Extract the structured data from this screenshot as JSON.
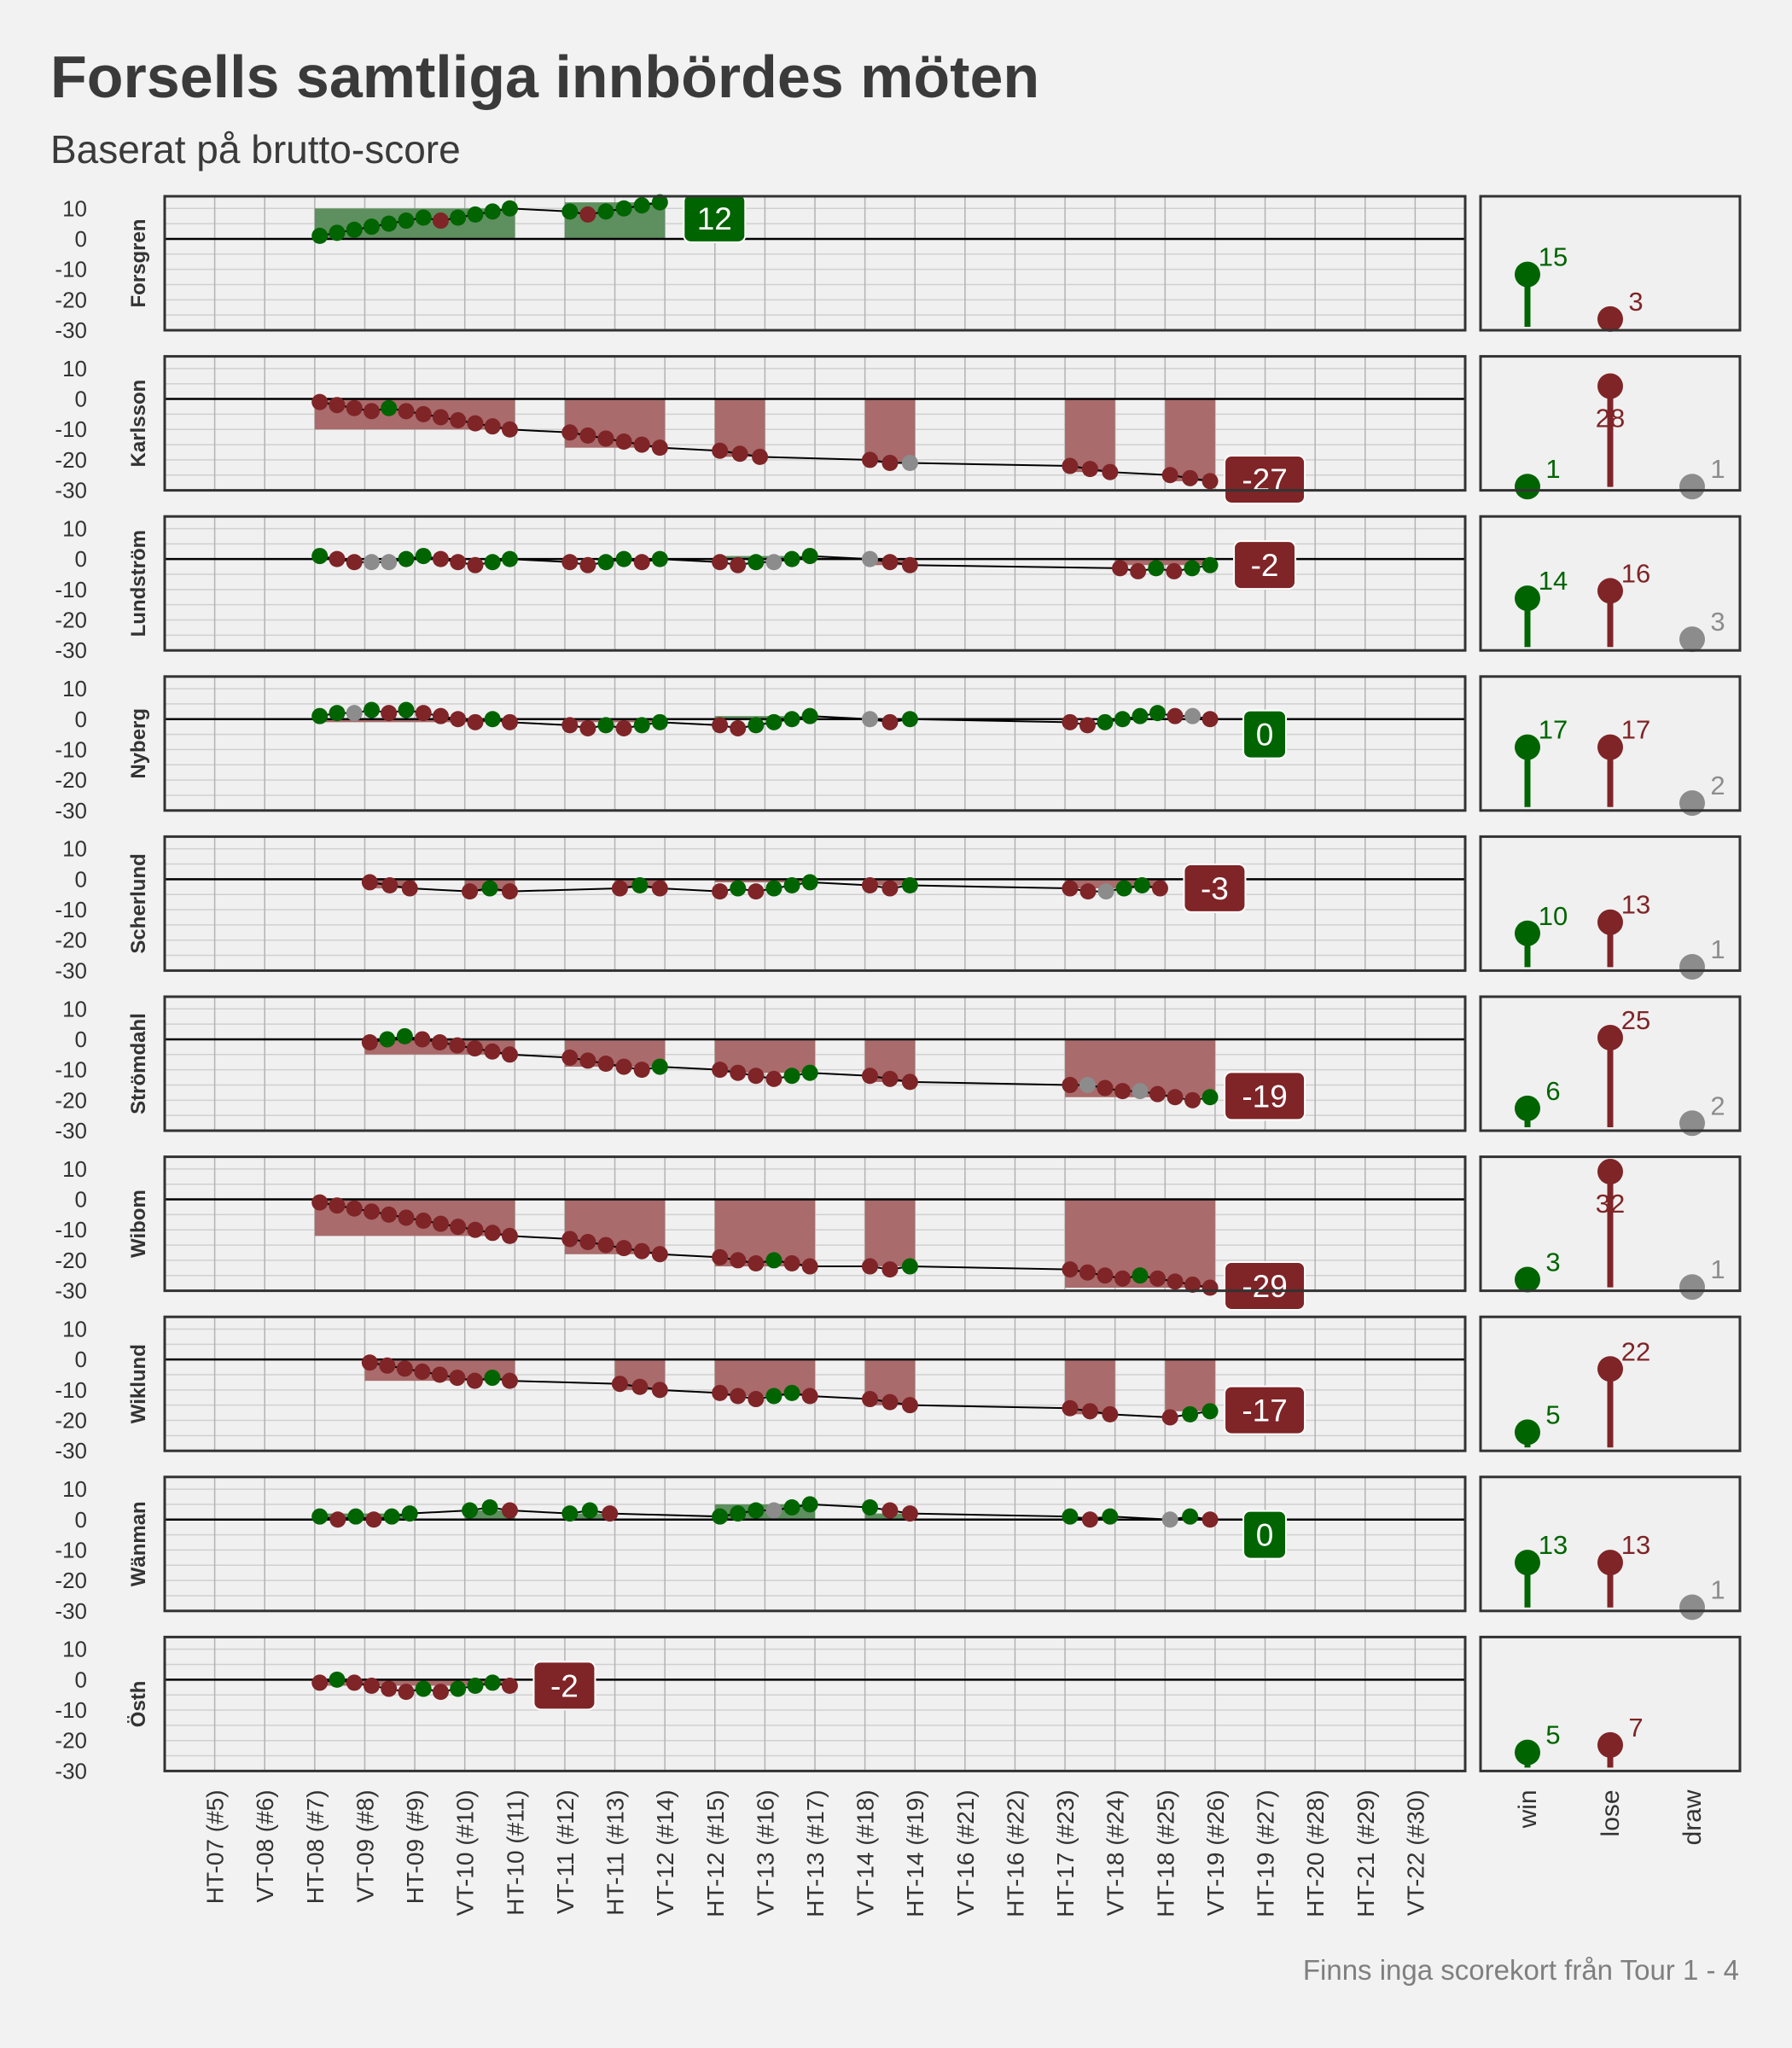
{
  "title": "Forsells samtliga innbördes möten",
  "subtitle": "Baserat på brutto-score",
  "caption": "Finns inga scorekort från Tour 1 - 4",
  "colors": {
    "win": "#006400",
    "lose": "#7f2427",
    "draw": "#8c8c8c",
    "background": "#f2f2f2",
    "panel": "#f0f0f0"
  },
  "chart_data": {
    "type": "line",
    "x_categories": [
      "HT-07 (#5)",
      "VT-08 (#6)",
      "HT-08 (#7)",
      "VT-09 (#8)",
      "HT-09 (#9)",
      "VT-10 (#10)",
      "HT-10 (#11)",
      "VT-11 (#12)",
      "HT-11 (#13)",
      "VT-12 (#14)",
      "HT-12 (#15)",
      "VT-13 (#16)",
      "HT-13 (#17)",
      "VT-14 (#18)",
      "HT-14 (#19)",
      "VT-16 (#21)",
      "HT-16 (#22)",
      "HT-17 (#23)",
      "VT-18 (#24)",
      "HT-18 (#25)",
      "VT-19 (#26)",
      "HT-19 (#27)",
      "HT-20 (#28)",
      "HT-21 (#29)",
      "VT-22 (#30)"
    ],
    "ylim": [
      -30,
      14
    ],
    "y_ticks": [
      10,
      0,
      -10,
      -20,
      -30
    ],
    "result_ticks": [
      "win",
      "lose",
      "draw"
    ],
    "result_ylim": [
      0,
      36
    ],
    "grid": true,
    "panels": [
      {
        "name": "Forsgren",
        "final": "12",
        "counts": {
          "win": 15,
          "lose": 3,
          "draw": 0
        },
        "segments": [
          {
            "start": 2.1,
            "end": 5.9,
            "values": [
              1,
              2,
              3,
              4,
              5,
              6,
              7,
              6,
              7,
              8,
              9,
              10
            ]
          },
          {
            "start": 7.1,
            "end": 8.9,
            "values": [
              9,
              8,
              9,
              10,
              11,
              12
            ]
          }
        ]
      },
      {
        "name": "Karlsson",
        "final": "-27",
        "counts": {
          "win": 1,
          "lose": 28,
          "draw": 1
        },
        "segments": [
          {
            "start": 2.1,
            "end": 5.9,
            "values": [
              -1,
              -2,
              -3,
              -4,
              -3,
              -4,
              -5,
              -6,
              -7,
              -8,
              -9,
              -10
            ]
          },
          {
            "start": 7.1,
            "end": 8.9,
            "values": [
              -11,
              -12,
              -13,
              -14,
              -15,
              -16
            ]
          },
          {
            "start": 10.1,
            "end": 10.9,
            "values": [
              -17,
              -18,
              -19
            ]
          },
          {
            "start": 13.1,
            "end": 13.9,
            "values": [
              -20,
              -21,
              -21
            ]
          },
          {
            "start": 17.1,
            "end": 17.9,
            "values": [
              -22,
              -23,
              -24
            ]
          },
          {
            "start": 19.1,
            "end": 19.9,
            "values": [
              -25,
              -26,
              -27
            ]
          }
        ]
      },
      {
        "name": "Lundström",
        "final": "-2",
        "counts": {
          "win": 14,
          "lose": 16,
          "draw": 3
        },
        "segments": [
          {
            "start": 2.1,
            "end": 5.9,
            "values": [
              1,
              0,
              -1,
              -1,
              -1,
              0,
              1,
              0,
              -1,
              -2,
              -1,
              0
            ]
          },
          {
            "start": 7.1,
            "end": 8.9,
            "values": [
              -1,
              -2,
              -1,
              0,
              -1,
              0
            ]
          },
          {
            "start": 10.1,
            "end": 11.9,
            "values": [
              -1,
              -2,
              -1,
              -1,
              0,
              1
            ]
          },
          {
            "start": 13.1,
            "end": 13.9,
            "values": [
              0,
              -1,
              -2
            ]
          },
          {
            "start": 18.1,
            "end": 19.9,
            "values": [
              -3,
              -4,
              -3,
              -4,
              -3,
              -2
            ]
          }
        ]
      },
      {
        "name": "Nyberg",
        "final": "0",
        "counts": {
          "win": 17,
          "lose": 17,
          "draw": 2
        },
        "segments": [
          {
            "start": 2.1,
            "end": 5.9,
            "values": [
              1,
              2,
              2,
              3,
              2,
              3,
              2,
              1,
              0,
              -1,
              0,
              -1
            ]
          },
          {
            "start": 7.1,
            "end": 8.9,
            "values": [
              -2,
              -3,
              -2,
              -3,
              -2,
              -1
            ]
          },
          {
            "start": 10.1,
            "end": 11.9,
            "values": [
              -2,
              -3,
              -2,
              -1,
              0,
              1
            ]
          },
          {
            "start": 13.1,
            "end": 13.9,
            "values": [
              0,
              -1,
              0
            ]
          },
          {
            "start": 17.1,
            "end": 19.9,
            "values": [
              -1,
              -2,
              -1,
              0,
              1,
              2,
              1,
              1,
              0
            ]
          }
        ]
      },
      {
        "name": "Scherlund",
        "final": "-3",
        "counts": {
          "win": 10,
          "lose": 13,
          "draw": 1
        },
        "segments": [
          {
            "start": 3.1,
            "end": 3.9,
            "values": [
              -1,
              -2,
              -3
            ]
          },
          {
            "start": 5.1,
            "end": 5.9,
            "values": [
              -4,
              -3,
              -4
            ]
          },
          {
            "start": 8.1,
            "end": 8.9,
            "values": [
              -3,
              -2,
              -3
            ]
          },
          {
            "start": 10.1,
            "end": 11.9,
            "values": [
              -4,
              -3,
              -4,
              -3,
              -2,
              -1
            ]
          },
          {
            "start": 13.1,
            "end": 13.9,
            "values": [
              -2,
              -3,
              -2
            ]
          },
          {
            "start": 17.1,
            "end": 18.9,
            "values": [
              -3,
              -4,
              -4,
              -3,
              -2,
              -3
            ]
          }
        ]
      },
      {
        "name": "Strömdahl",
        "final": "-19",
        "counts": {
          "win": 6,
          "lose": 25,
          "draw": 2
        },
        "segments": [
          {
            "start": 3.1,
            "end": 5.9,
            "values": [
              -1,
              0,
              1,
              0,
              -1,
              -2,
              -3,
              -4,
              -5
            ]
          },
          {
            "start": 7.1,
            "end": 8.9,
            "values": [
              -6,
              -7,
              -8,
              -9,
              -10,
              -9
            ]
          },
          {
            "start": 10.1,
            "end": 11.9,
            "values": [
              -10,
              -11,
              -12,
              -13,
              -12,
              -11
            ]
          },
          {
            "start": 13.1,
            "end": 13.9,
            "values": [
              -12,
              -13,
              -14
            ]
          },
          {
            "start": 17.1,
            "end": 19.9,
            "values": [
              -15,
              -15,
              -16,
              -17,
              -17,
              -18,
              -19,
              -20,
              -19
            ]
          }
        ]
      },
      {
        "name": "Wibom",
        "final": "-29",
        "counts": {
          "win": 3,
          "lose": 32,
          "draw": 1
        },
        "segments": [
          {
            "start": 2.1,
            "end": 5.9,
            "values": [
              -1,
              -2,
              -3,
              -4,
              -5,
              -6,
              -7,
              -8,
              -9,
              -10,
              -11,
              -12
            ]
          },
          {
            "start": 7.1,
            "end": 8.9,
            "values": [
              -13,
              -14,
              -15,
              -16,
              -17,
              -18
            ]
          },
          {
            "start": 10.1,
            "end": 11.9,
            "values": [
              -19,
              -20,
              -21,
              -20,
              -21,
              -22
            ]
          },
          {
            "start": 13.1,
            "end": 13.9,
            "values": [
              -22,
              -23,
              -22
            ]
          },
          {
            "start": 17.1,
            "end": 19.9,
            "values": [
              -23,
              -24,
              -25,
              -26,
              -25,
              -26,
              -27,
              -28,
              -29
            ]
          }
        ]
      },
      {
        "name": "Wiklund",
        "final": "-17",
        "counts": {
          "win": 5,
          "lose": 22,
          "draw": 0
        },
        "segments": [
          {
            "start": 3.1,
            "end": 5.9,
            "values": [
              -1,
              -2,
              -3,
              -4,
              -5,
              -6,
              -7,
              -6,
              -7
            ]
          },
          {
            "start": 8.1,
            "end": 8.9,
            "values": [
              -8,
              -9,
              -10
            ]
          },
          {
            "start": 10.1,
            "end": 11.9,
            "values": [
              -11,
              -12,
              -13,
              -12,
              -11,
              -12
            ]
          },
          {
            "start": 13.1,
            "end": 13.9,
            "values": [
              -13,
              -14,
              -15
            ]
          },
          {
            "start": 17.1,
            "end": 17.9,
            "values": [
              -16,
              -17,
              -18
            ]
          },
          {
            "start": 19.1,
            "end": 19.9,
            "values": [
              -19,
              -18,
              -17
            ]
          }
        ]
      },
      {
        "name": "Wänman",
        "final": "0",
        "counts": {
          "win": 13,
          "lose": 13,
          "draw": 1
        },
        "segments": [
          {
            "start": 2.1,
            "end": 3.9,
            "values": [
              1,
              0,
              1,
              0,
              1,
              2
            ]
          },
          {
            "start": 5.1,
            "end": 5.9,
            "values": [
              3,
              4,
              3
            ]
          },
          {
            "start": 7.1,
            "end": 7.9,
            "values": [
              2,
              3,
              2
            ]
          },
          {
            "start": 10.1,
            "end": 11.9,
            "values": [
              1,
              2,
              3,
              3,
              4,
              5
            ]
          },
          {
            "start": 13.1,
            "end": 13.9,
            "values": [
              4,
              3,
              2
            ]
          },
          {
            "start": 17.1,
            "end": 17.9,
            "values": [
              1,
              0,
              1
            ]
          },
          {
            "start": 19.1,
            "end": 19.9,
            "values": [
              0,
              1,
              0
            ]
          }
        ]
      },
      {
        "name": "Östh",
        "final": "-2",
        "counts": {
          "win": 5,
          "lose": 7,
          "draw": 0
        },
        "segments": [
          {
            "start": 2.1,
            "end": 5.9,
            "values": [
              -1,
              0,
              -1,
              -2,
              -3,
              -4,
              -3,
              -4,
              -3,
              -2,
              -1,
              -2
            ]
          }
        ]
      }
    ]
  }
}
